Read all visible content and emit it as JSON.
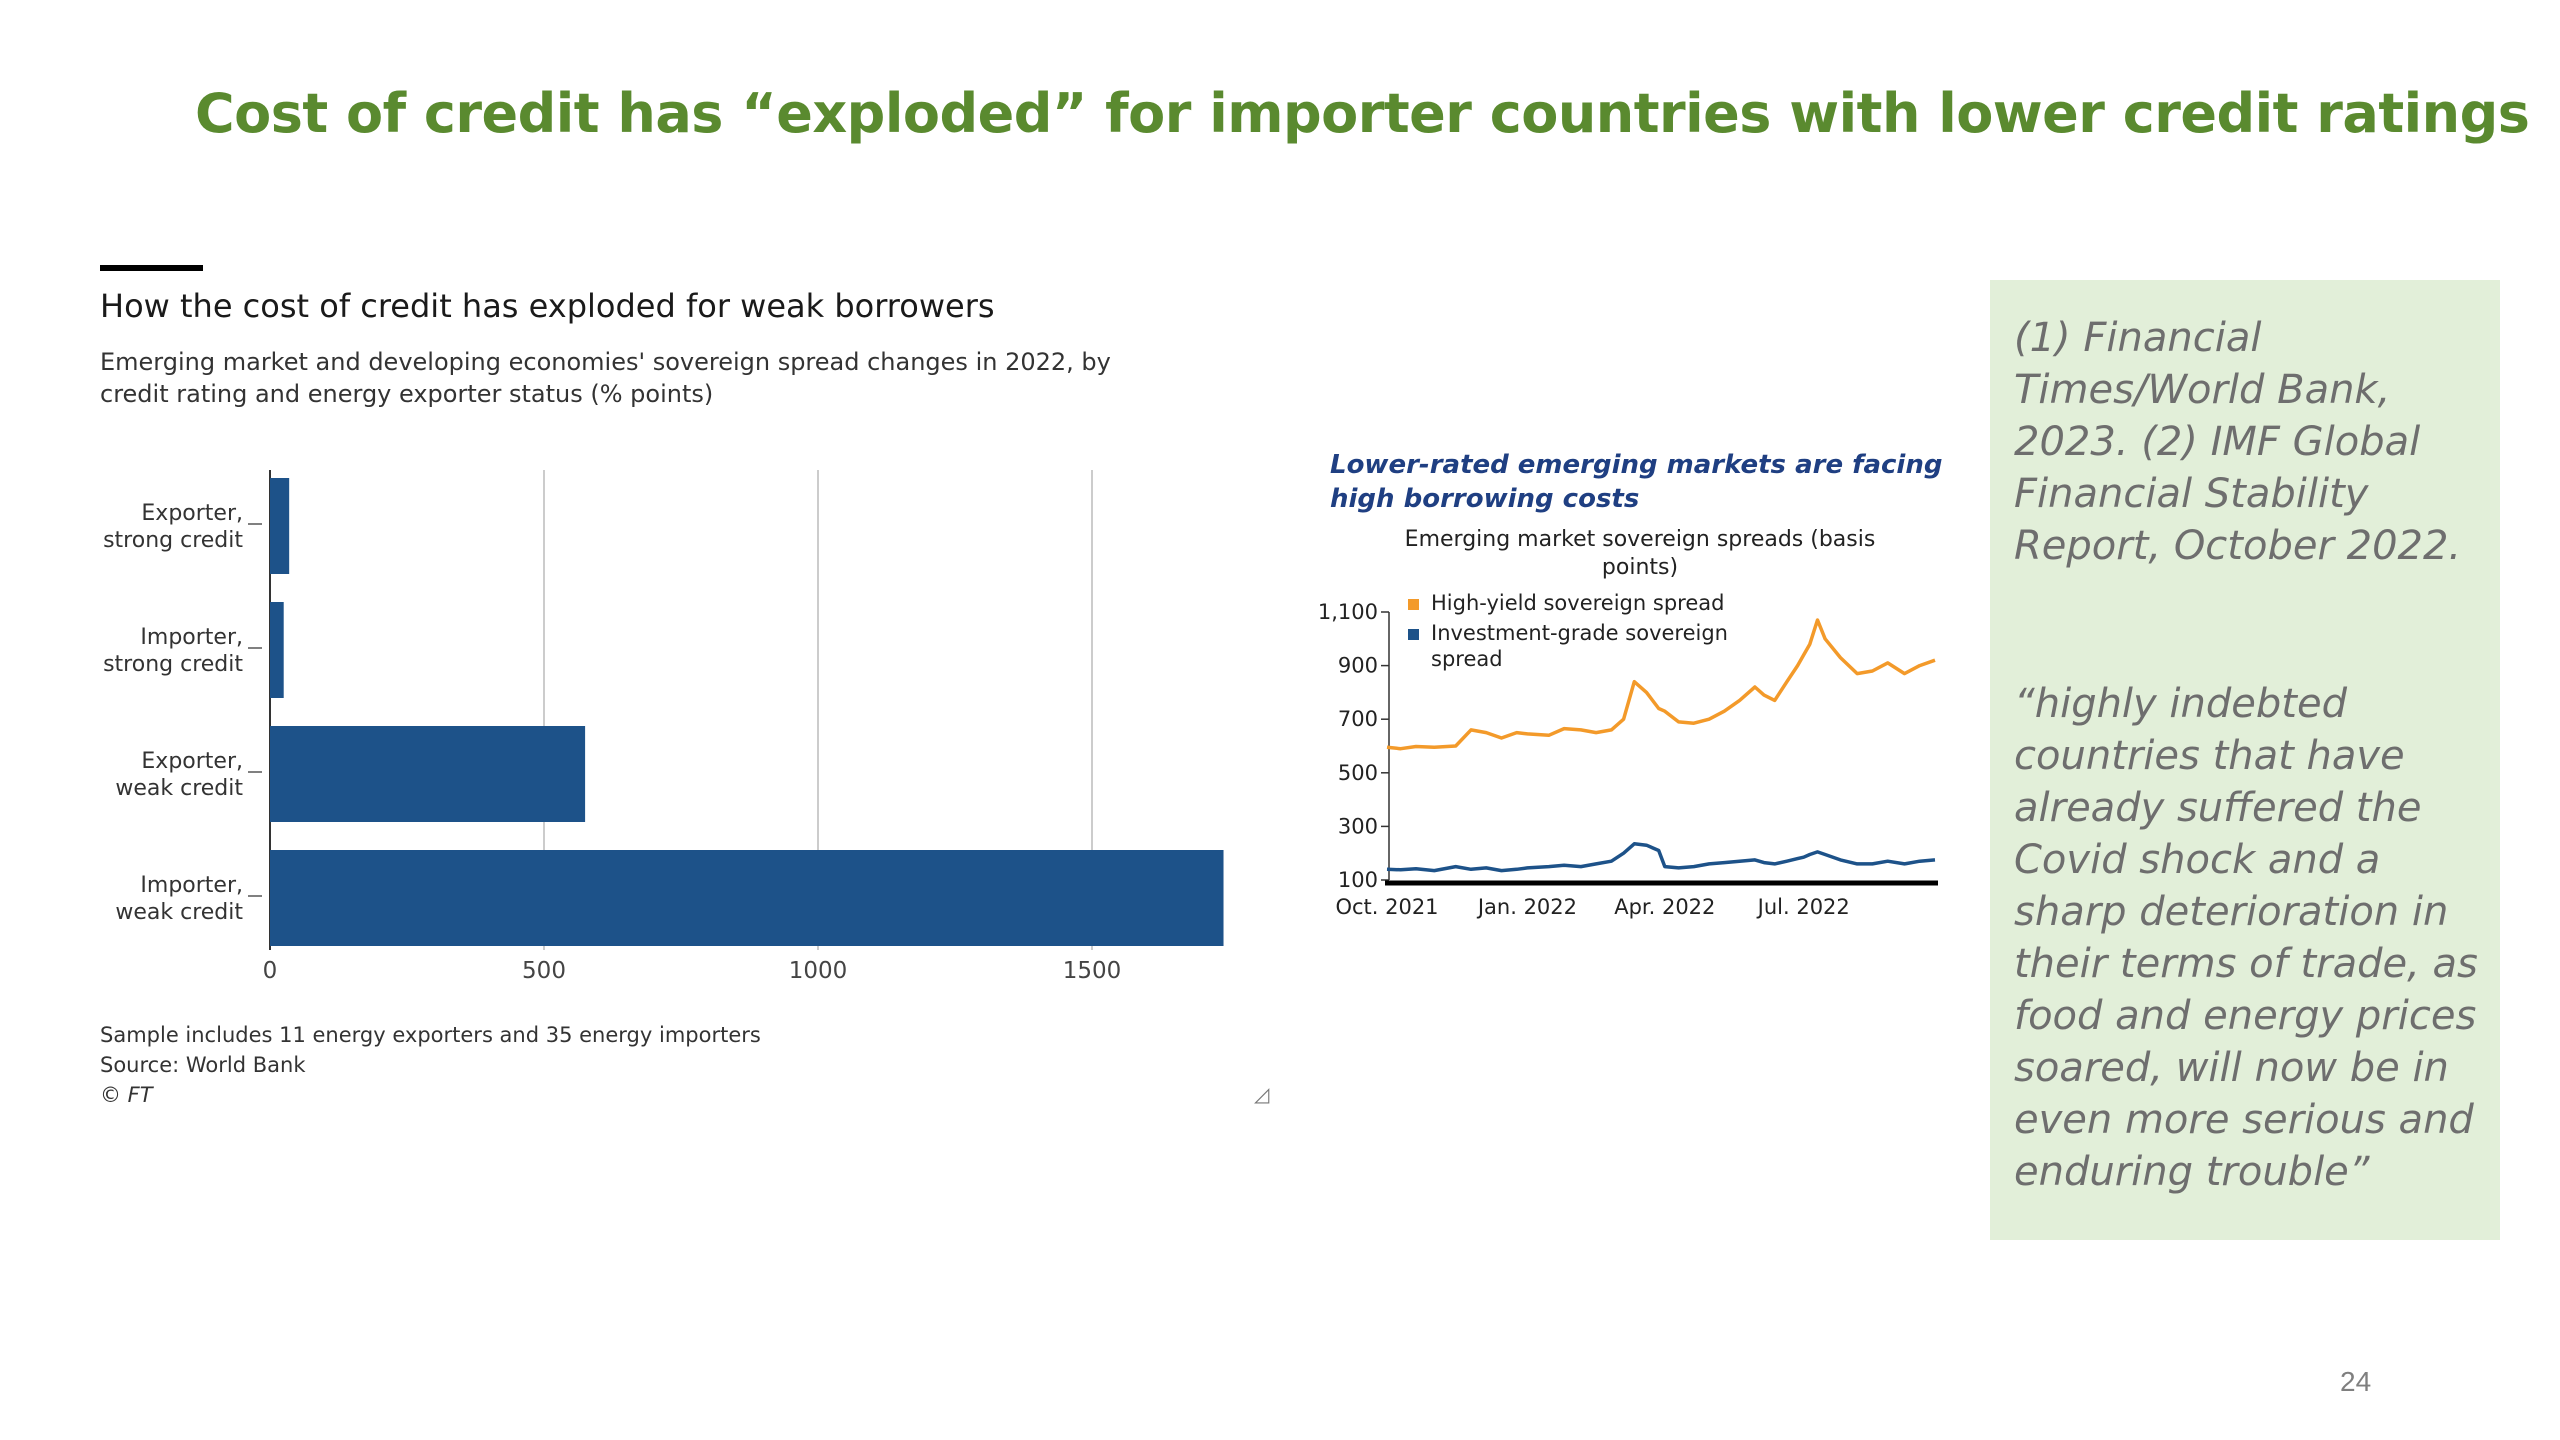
{
  "slide": {
    "title": "Cost of credit has “exploded” for importer countries with lower credit ratings",
    "page_number": "24"
  },
  "ft_chart": {
    "title": "How the cost of credit has exploded for weak borrowers",
    "subtitle": "Emerging market and developing economies' sovereign spread changes in 2022, by credit rating and energy exporter status (% points)",
    "note": "Sample includes 11 energy exporters and 35 energy importers",
    "source": "Source: World Bank",
    "copyright": "© FT"
  },
  "imf_chart": {
    "title": "Lower-rated emerging markets are facing high borrowing costs",
    "subtitle": "Emerging market sovereign spreads (basis points)"
  },
  "side_box": {
    "source_text": "(1) Financial Times/World Bank, 2023. (2) IMF Global Financial Stability Report, October 2022.",
    "quote": "“highly indebted countries that have already suffered the Covid shock and a sharp deterioration in their terms of trade, as food and energy prices soared, will now be in even more serious and enduring trouble”"
  },
  "colors": {
    "title_green": "#5a8a2f",
    "bar_blue": "#1d5289",
    "high_yield_orange": "#f39a2a",
    "investment_grade_blue": "#1d5289",
    "side_box_bg": "#e2efd9"
  },
  "chart_data": [
    {
      "type": "bar",
      "orientation": "horizontal",
      "categories": [
        [
          "Exporter,",
          "strong credit"
        ],
        [
          "Importer,",
          "strong credit"
        ],
        [
          "Exporter,",
          "weak credit"
        ],
        [
          "Importer,",
          "weak credit"
        ]
      ],
      "values": [
        35,
        25,
        575,
        1740
      ],
      "xlim": [
        0,
        1750
      ],
      "xticks": [
        0,
        500,
        1000,
        1500
      ],
      "grid": true,
      "color": "#1d5289"
    },
    {
      "type": "line",
      "x_ticks": [
        "Oct. 2021",
        "Jan. 2022",
        "Apr. 2022",
        "Jul. 2022"
      ],
      "y_ticks": [
        "1,100",
        "900",
        "700",
        "500",
        "300",
        "100"
      ],
      "ylim": [
        100,
        1100
      ],
      "legend_position": "top-left",
      "series": [
        {
          "name": "High-yield sovereign spread",
          "color": "#f39a2a",
          "points": [
            [
              "Oct. 2021",
              595
            ],
            [
              "2021-10-10",
              590
            ],
            [
              "2021-10-20",
              598
            ],
            [
              "2021-11-01",
              595
            ],
            [
              "2021-11-15",
              600
            ],
            [
              "2021-11-25",
              660
            ],
            [
              "2021-12-05",
              650
            ],
            [
              "2021-12-15",
              630
            ],
            [
              "2021-12-25",
              650
            ],
            [
              "Jan. 2022",
              645
            ],
            [
              "2022-01-15",
              640
            ],
            [
              "2022-01-25",
              665
            ],
            [
              "2022-02-05",
              660
            ],
            [
              "2022-02-15",
              650
            ],
            [
              "2022-02-25",
              660
            ],
            [
              "2022-03-05",
              700
            ],
            [
              "2022-03-12",
              840
            ],
            [
              "2022-03-20",
              800
            ],
            [
              "2022-03-28",
              740
            ],
            [
              "Apr. 2022",
              730
            ],
            [
              "2022-04-10",
              690
            ],
            [
              "2022-04-20",
              685
            ],
            [
              "2022-04-30",
              700
            ],
            [
              "2022-05-10",
              730
            ],
            [
              "2022-05-20",
              770
            ],
            [
              "2022-05-30",
              820
            ],
            [
              "2022-06-05",
              790
            ],
            [
              "2022-06-12",
              770
            ],
            [
              "2022-06-20",
              840
            ],
            [
              "2022-06-27",
              900
            ],
            [
              "Jul. 2022",
              940
            ],
            [
              "2022-07-05",
              980
            ],
            [
              "2022-07-10",
              1070
            ],
            [
              "2022-07-15",
              1000
            ],
            [
              "2022-07-25",
              930
            ],
            [
              "2022-08-05",
              870
            ],
            [
              "2022-08-15",
              880
            ],
            [
              "2022-08-25",
              910
            ],
            [
              "2022-09-05",
              870
            ],
            [
              "2022-09-15",
              900
            ],
            [
              "2022-09-25",
              920
            ]
          ]
        },
        {
          "name": "Investment-grade sovereign spread",
          "color": "#1d5289",
          "points": [
            [
              "Oct. 2021",
              140
            ],
            [
              "2021-10-10",
              138
            ],
            [
              "2021-10-20",
              142
            ],
            [
              "2021-11-01",
              135
            ],
            [
              "2021-11-15",
              150
            ],
            [
              "2021-11-25",
              140
            ],
            [
              "2021-12-05",
              145
            ],
            [
              "2021-12-15",
              135
            ],
            [
              "2021-12-25",
              140
            ],
            [
              "Jan. 2022",
              145
            ],
            [
              "2022-01-15",
              150
            ],
            [
              "2022-01-25",
              155
            ],
            [
              "2022-02-05",
              150
            ],
            [
              "2022-02-15",
              160
            ],
            [
              "2022-02-25",
              170
            ],
            [
              "2022-03-05",
              200
            ],
            [
              "2022-03-12",
              235
            ],
            [
              "2022-03-20",
              230
            ],
            [
              "2022-03-28",
              210
            ],
            [
              "Apr. 2022",
              150
            ],
            [
              "2022-04-10",
              145
            ],
            [
              "2022-04-20",
              150
            ],
            [
              "2022-04-30",
              160
            ],
            [
              "2022-05-10",
              165
            ],
            [
              "2022-05-20",
              170
            ],
            [
              "2022-05-30",
              175
            ],
            [
              "2022-06-05",
              165
            ],
            [
              "2022-06-12",
              160
            ],
            [
              "2022-06-20",
              170
            ],
            [
              "2022-06-27",
              180
            ],
            [
              "Jul. 2022",
              185
            ],
            [
              "2022-07-05",
              195
            ],
            [
              "2022-07-10",
              205
            ],
            [
              "2022-07-15",
              195
            ],
            [
              "2022-07-25",
              175
            ],
            [
              "2022-08-05",
              160
            ],
            [
              "2022-08-15",
              160
            ],
            [
              "2022-08-25",
              170
            ],
            [
              "2022-09-05",
              160
            ],
            [
              "2022-09-15",
              170
            ],
            [
              "2022-09-25",
              175
            ]
          ]
        }
      ]
    }
  ]
}
